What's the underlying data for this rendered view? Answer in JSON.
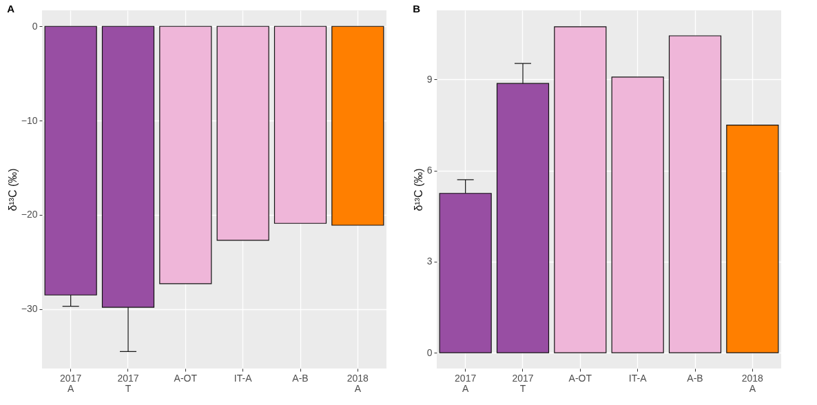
{
  "chart_data": [
    {
      "type": "bar",
      "title": "A",
      "ylabel": "δ¹³C (‰)",
      "categories": [
        "2017\nA",
        "2017\nT",
        "A-OT",
        "IT-A",
        "A-B",
        "2018\nA"
      ],
      "values": [
        -28.5,
        -29.8,
        -27.3,
        -22.7,
        -20.9,
        -21.1
      ],
      "colors": [
        "#984ea3",
        "#984ea3",
        "#efb6d9",
        "#efb6d9",
        "#efb6d9",
        "#ff7f00"
      ],
      "errors": [
        [
          -29.7,
          -28.5
        ],
        [
          -34.5,
          -29.8
        ],
        null,
        null,
        null,
        null
      ],
      "ylim": [
        -36.3,
        1.7
      ],
      "yticks": [
        -30,
        -20,
        -10,
        0
      ],
      "grid": true
    },
    {
      "type": "bar",
      "title": "B",
      "ylabel": "δ¹³C (‰)",
      "categories": [
        "2017\nA",
        "2017\nT",
        "A-OT",
        "IT-A",
        "A-B",
        "2018\nA"
      ],
      "values": [
        5.25,
        8.87,
        10.74,
        9.08,
        10.44,
        7.5
      ],
      "colors": [
        "#984ea3",
        "#984ea3",
        "#efb6d9",
        "#efb6d9",
        "#efb6d9",
        "#ff7f00"
      ],
      "errors": [
        [
          5.25,
          5.7
        ],
        [
          8.87,
          9.53
        ],
        null,
        null,
        null,
        null
      ],
      "ylim": [
        -0.52,
        11.28
      ],
      "yticks": [
        0,
        3,
        6,
        9
      ],
      "grid": true
    }
  ]
}
